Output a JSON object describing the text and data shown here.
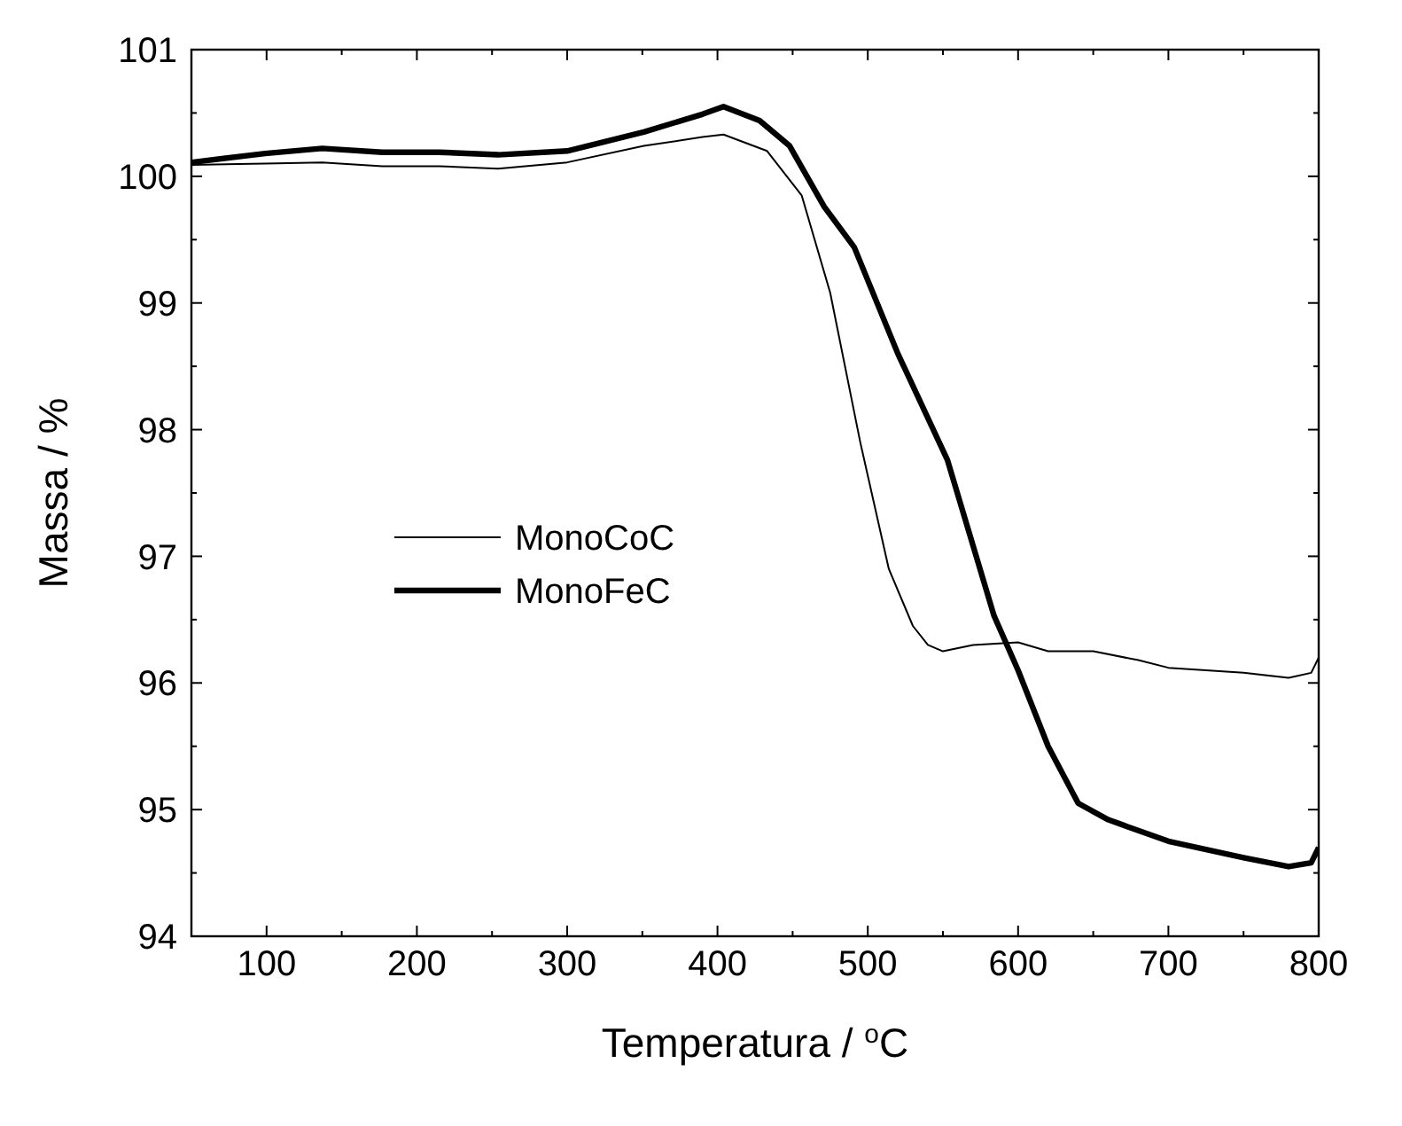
{
  "chart_data": {
    "type": "line",
    "xlabel": "Temperatura / $^{o}$C",
    "ylabel": "Massa / %",
    "xlim": [
      50,
      800
    ],
    "xticks": [
      100,
      200,
      300,
      400,
      500,
      600,
      700,
      800
    ],
    "ylim": [
      94,
      101
    ],
    "yticks": [
      94,
      95,
      96,
      97,
      98,
      99,
      100,
      101
    ],
    "legend": "left",
    "grid": false,
    "marker": "none",
    "line_style": "solid",
    "series": [
      {
        "name": "MonoCoC",
        "color": "#000000",
        "x": [
          50,
          99,
          137,
          177,
          215,
          254,
          300,
          351,
          390,
          404,
          433,
          456,
          475,
          495,
          514,
          530,
          540,
          550,
          570,
          600,
          620,
          650,
          680,
          700,
          750,
          780,
          795,
          800
        ],
        "values": [
          100.09,
          100.1,
          100.11,
          100.08,
          100.08,
          100.06,
          100.11,
          100.24,
          100.31,
          100.33,
          100.2,
          99.85,
          99.08,
          97.9,
          96.9,
          96.45,
          96.3,
          96.25,
          96.3,
          96.32,
          96.25,
          96.25,
          96.18,
          96.12,
          96.08,
          96.04,
          96.08,
          96.2
        ]
      },
      {
        "name": "MonoFeC",
        "color": "#000000",
        "x": [
          50,
          99,
          137,
          177,
          215,
          254,
          300,
          351,
          390,
          404,
          428,
          448,
          471,
          491,
          520,
          553,
          584,
          600,
          620,
          640,
          660,
          700,
          750,
          780,
          795,
          800
        ],
        "values": [
          100.11,
          100.18,
          100.22,
          100.19,
          100.19,
          100.17,
          100.2,
          100.35,
          100.49,
          100.55,
          100.44,
          100.24,
          99.76,
          99.44,
          98.6,
          97.76,
          96.53,
          96.1,
          95.5,
          95.05,
          94.92,
          94.75,
          94.62,
          94.55,
          94.58,
          94.7
        ]
      }
    ]
  }
}
